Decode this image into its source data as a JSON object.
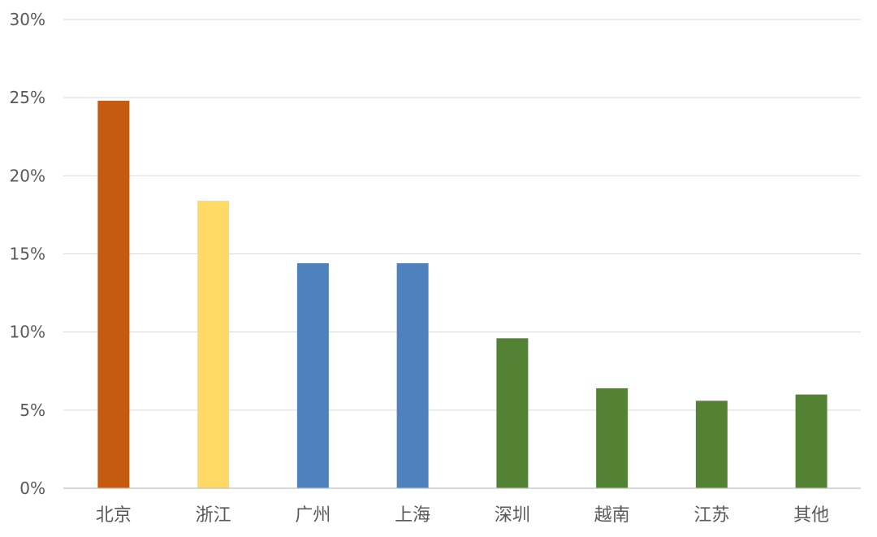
{
  "chart_data": {
    "type": "bar",
    "title": "",
    "xlabel": "",
    "ylabel": "",
    "ylim": [
      0,
      30
    ],
    "y_ticks": [
      0,
      5,
      10,
      15,
      20,
      25,
      30
    ],
    "y_tick_labels": [
      "0%",
      "5%",
      "10%",
      "15%",
      "20%",
      "25%",
      "30%"
    ],
    "categories": [
      "北京",
      "浙江",
      "广州",
      "上海",
      "深圳",
      "越南",
      "江苏",
      "其他"
    ],
    "values": [
      24.8,
      18.4,
      14.4,
      14.4,
      9.6,
      6.4,
      5.6,
      6.0
    ],
    "bar_colors": [
      "#c55a11",
      "#ffd966",
      "#4f81bd",
      "#4f81bd",
      "#548235",
      "#548235",
      "#548235",
      "#548235"
    ],
    "grid": true,
    "legend": "none"
  }
}
